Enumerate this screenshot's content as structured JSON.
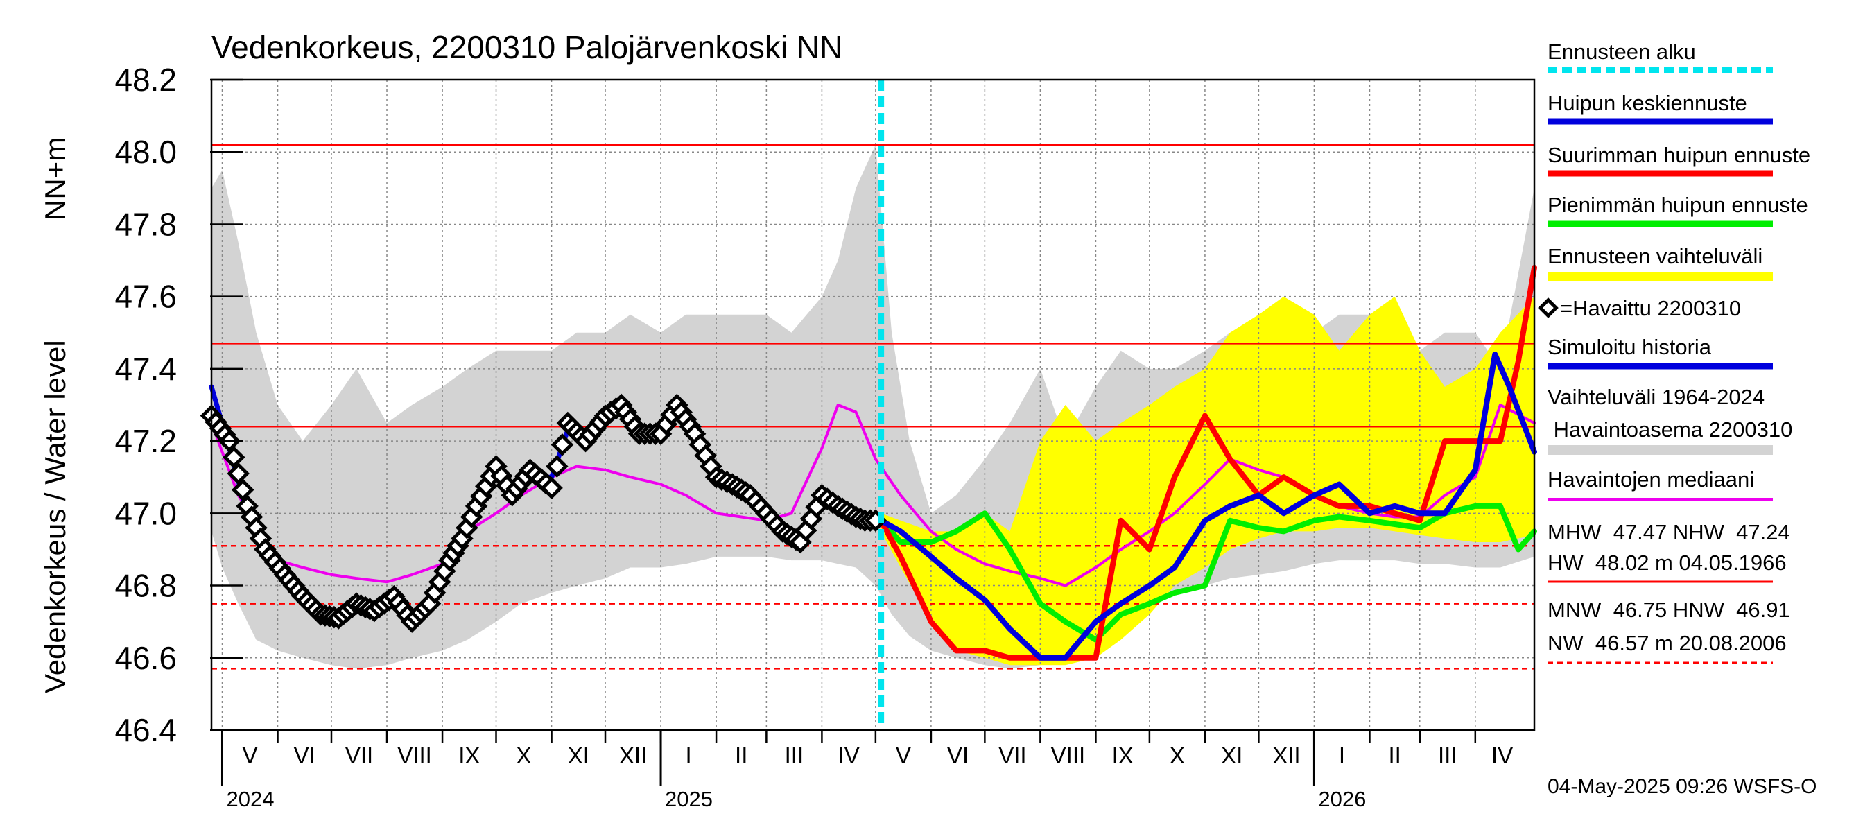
{
  "chart_data": {
    "type": "line",
    "title": "Vedenkorkeus, 2200310 Palojärvenkoski NN",
    "ylabel_main": "Vedenkorkeus / Water level",
    "ylabel_unit": "NN+m",
    "ylim": [
      46.4,
      48.2
    ],
    "yticks": [
      "46.4",
      "46.6",
      "46.8",
      "47.0",
      "47.2",
      "47.4",
      "47.6",
      "47.8",
      "48.0",
      "48.2"
    ],
    "xlim": [
      "2024-04-25",
      "2026-05-04"
    ],
    "grid": true,
    "months": [
      {
        "label": "V",
        "start": "2024-05-01",
        "end": "2024-06-01"
      },
      {
        "label": "VI",
        "start": "2024-06-01",
        "end": "2024-07-01"
      },
      {
        "label": "VII",
        "start": "2024-07-01",
        "end": "2024-08-01"
      },
      {
        "label": "VIII",
        "start": "2024-08-01",
        "end": "2024-09-01"
      },
      {
        "label": "IX",
        "start": "2024-09-01",
        "end": "2024-10-01"
      },
      {
        "label": "X",
        "start": "2024-10-01",
        "end": "2024-11-01"
      },
      {
        "label": "XI",
        "start": "2024-11-01",
        "end": "2024-12-01"
      },
      {
        "label": "XII",
        "start": "2024-12-01",
        "end": "2025-01-01"
      },
      {
        "label": "I",
        "start": "2025-01-01",
        "end": "2025-02-01"
      },
      {
        "label": "II",
        "start": "2025-02-01",
        "end": "2025-03-01"
      },
      {
        "label": "III",
        "start": "2025-03-01",
        "end": "2025-04-01"
      },
      {
        "label": "IV",
        "start": "2025-04-01",
        "end": "2025-05-01"
      },
      {
        "label": "V",
        "start": "2025-05-01",
        "end": "2025-06-01"
      },
      {
        "label": "VI",
        "start": "2025-06-01",
        "end": "2025-07-01"
      },
      {
        "label": "VII",
        "start": "2025-07-01",
        "end": "2025-08-01"
      },
      {
        "label": "VIII",
        "start": "2025-08-01",
        "end": "2025-09-01"
      },
      {
        "label": "IX",
        "start": "2025-09-01",
        "end": "2025-10-01"
      },
      {
        "label": "X",
        "start": "2025-10-01",
        "end": "2025-11-01"
      },
      {
        "label": "XI",
        "start": "2025-11-01",
        "end": "2025-12-01"
      },
      {
        "label": "XII",
        "start": "2025-12-01",
        "end": "2026-01-01"
      },
      {
        "label": "I",
        "start": "2026-01-01",
        "end": "2026-02-01"
      },
      {
        "label": "II",
        "start": "2026-02-01",
        "end": "2026-03-01"
      },
      {
        "label": "III",
        "start": "2026-03-01",
        "end": "2026-04-01"
      },
      {
        "label": "IV",
        "start": "2026-04-01",
        "end": "2026-05-01"
      }
    ],
    "years": [
      {
        "label": "2024",
        "date": "2024-05-01"
      },
      {
        "label": "2025",
        "date": "2025-01-01"
      },
      {
        "label": "2026",
        "date": "2026-01-01"
      }
    ],
    "forecast_start": "2025-05-04",
    "reference_lines": {
      "HW": 48.02,
      "MHW": 47.47,
      "NHW": 47.24,
      "HNW": 46.91,
      "MNW": 46.75,
      "NW": 46.57
    },
    "history_band": {
      "x": [
        "2024-04-25",
        "2024-05-01",
        "2024-05-10",
        "2024-05-20",
        "2024-06-01",
        "2024-06-15",
        "2024-07-01",
        "2024-07-15",
        "2024-08-01",
        "2024-08-15",
        "2024-09-01",
        "2024-09-15",
        "2024-10-01",
        "2024-10-15",
        "2024-11-01",
        "2024-11-15",
        "2024-12-01",
        "2024-12-15",
        "2025-01-01",
        "2025-01-15",
        "2025-02-01",
        "2025-02-15",
        "2025-03-01",
        "2025-03-15",
        "2025-04-01",
        "2025-04-10",
        "2025-04-20",
        "2025-05-01",
        "2025-05-10",
        "2025-05-20",
        "2025-06-01",
        "2025-06-15",
        "2025-07-01",
        "2025-07-15",
        "2025-08-01",
        "2025-08-15",
        "2025-09-01",
        "2025-09-15",
        "2025-10-01",
        "2025-10-15",
        "2025-11-01",
        "2025-11-15",
        "2025-12-01",
        "2025-12-15",
        "2026-01-01",
        "2026-01-15",
        "2026-02-01",
        "2026-02-15",
        "2026-03-01",
        "2026-03-15",
        "2026-04-01",
        "2026-04-15",
        "2026-05-04"
      ],
      "upper": [
        47.9,
        47.95,
        47.75,
        47.5,
        47.3,
        47.2,
        47.3,
        47.4,
        47.25,
        47.3,
        47.35,
        47.4,
        47.45,
        47.45,
        47.45,
        47.5,
        47.5,
        47.55,
        47.5,
        47.55,
        47.55,
        47.55,
        47.55,
        47.5,
        47.6,
        47.7,
        47.9,
        48.02,
        47.5,
        47.2,
        47.0,
        47.05,
        47.15,
        47.25,
        47.4,
        47.2,
        47.35,
        47.45,
        47.4,
        47.4,
        47.45,
        47.5,
        47.5,
        47.55,
        47.5,
        47.55,
        47.55,
        47.5,
        47.45,
        47.5,
        47.5,
        47.4,
        47.9
      ],
      "lower": [
        46.95,
        46.85,
        46.75,
        46.65,
        46.62,
        46.6,
        46.58,
        46.57,
        46.58,
        46.6,
        46.62,
        46.65,
        46.7,
        46.75,
        46.78,
        46.8,
        46.82,
        46.85,
        46.85,
        46.86,
        46.88,
        46.88,
        46.88,
        46.87,
        46.87,
        46.86,
        46.85,
        46.8,
        46.72,
        46.66,
        46.62,
        46.6,
        46.58,
        46.57,
        46.58,
        46.6,
        46.63,
        46.68,
        46.74,
        46.78,
        46.8,
        46.82,
        46.83,
        46.84,
        46.86,
        46.87,
        46.87,
        46.87,
        46.86,
        46.86,
        46.85,
        46.85,
        46.88
      ]
    },
    "forecast_band": {
      "x": [
        "2025-05-04",
        "2025-05-15",
        "2025-06-01",
        "2025-06-15",
        "2025-07-01",
        "2025-07-15",
        "2025-08-01",
        "2025-08-15",
        "2025-09-01",
        "2025-09-15",
        "2025-10-01",
        "2025-10-15",
        "2025-11-01",
        "2025-11-15",
        "2025-12-01",
        "2025-12-15",
        "2026-01-01",
        "2026-01-15",
        "2026-02-01",
        "2026-02-15",
        "2026-03-01",
        "2026-03-15",
        "2026-04-01",
        "2026-04-15",
        "2026-05-04"
      ],
      "upper": [
        47.0,
        46.98,
        46.95,
        46.95,
        47.0,
        46.95,
        47.2,
        47.3,
        47.2,
        47.25,
        47.3,
        47.35,
        47.4,
        47.5,
        47.55,
        47.6,
        47.55,
        47.45,
        47.55,
        47.6,
        47.45,
        47.35,
        47.4,
        47.5,
        47.6
      ],
      "lower": [
        46.95,
        46.85,
        46.7,
        46.62,
        46.6,
        46.58,
        46.58,
        46.58,
        46.6,
        46.65,
        46.72,
        46.8,
        46.85,
        46.9,
        46.93,
        46.95,
        46.95,
        46.96,
        46.96,
        46.95,
        46.94,
        46.93,
        46.92,
        46.92,
        46.94
      ]
    },
    "series": [
      {
        "name": "Havaittu 2200310",
        "x": [
          "2024-04-25",
          "2024-05-05",
          "2024-05-15",
          "2024-05-25",
          "2024-06-05",
          "2024-06-15",
          "2024-06-25",
          "2024-07-05",
          "2024-07-15",
          "2024-07-25",
          "2024-08-05",
          "2024-08-15",
          "2024-08-25",
          "2024-09-05",
          "2024-09-12",
          "2024-09-20",
          "2024-10-01",
          "2024-10-10",
          "2024-10-20",
          "2024-11-01",
          "2024-11-10",
          "2024-11-20",
          "2024-12-01",
          "2024-12-10",
          "2024-12-20",
          "2025-01-01",
          "2025-01-10",
          "2025-01-20",
          "2025-02-01",
          "2025-02-10",
          "2025-02-20",
          "2025-03-01",
          "2025-03-10",
          "2025-03-20",
          "2025-04-01",
          "2025-04-10",
          "2025-04-20",
          "2025-04-25",
          "2025-05-04"
        ],
        "y": [
          47.27,
          47.2,
          47.02,
          46.9,
          46.83,
          46.77,
          46.72,
          46.71,
          46.75,
          46.73,
          46.77,
          46.7,
          46.75,
          46.87,
          46.93,
          47.02,
          47.13,
          47.05,
          47.12,
          47.07,
          47.25,
          47.2,
          47.27,
          47.3,
          47.22,
          47.22,
          47.3,
          47.22,
          47.1,
          47.08,
          47.05,
          47.0,
          46.95,
          46.92,
          47.05,
          47.02,
          46.99,
          46.98,
          46.98
        ]
      },
      {
        "name": "Simuloitu historia",
        "x": [
          "2024-04-25",
          "2024-05-05",
          "2024-05-15",
          "2024-05-25",
          "2024-06-05",
          "2024-06-15",
          "2024-06-25",
          "2024-07-05",
          "2024-07-15",
          "2024-07-25",
          "2024-08-05",
          "2024-08-15",
          "2024-08-25",
          "2024-09-05",
          "2024-09-12",
          "2024-09-20",
          "2024-10-01",
          "2024-10-10",
          "2024-10-20",
          "2024-11-01",
          "2024-11-10",
          "2024-11-20",
          "2024-12-01",
          "2024-12-10",
          "2024-12-20",
          "2025-01-01",
          "2025-01-10",
          "2025-01-20",
          "2025-02-01",
          "2025-02-10",
          "2025-02-20",
          "2025-03-01",
          "2025-03-10",
          "2025-03-20",
          "2025-04-01",
          "2025-04-10",
          "2025-04-20",
          "2025-05-04"
        ],
        "y": [
          47.35,
          47.18,
          47.0,
          46.88,
          46.82,
          46.76,
          46.72,
          46.7,
          46.74,
          46.72,
          46.75,
          46.68,
          46.74,
          46.9,
          46.93,
          47.05,
          47.1,
          47.05,
          47.1,
          47.1,
          47.23,
          47.2,
          47.25,
          47.28,
          47.22,
          47.22,
          47.28,
          47.22,
          47.1,
          47.08,
          47.04,
          47.0,
          46.95,
          46.9,
          47.04,
          47.02,
          46.99,
          46.98
        ]
      },
      {
        "name": "Havaintojen mediaani",
        "x": [
          "2024-04-25",
          "2024-05-10",
          "2024-06-01",
          "2024-06-15",
          "2024-07-01",
          "2024-07-15",
          "2024-08-01",
          "2024-08-15",
          "2024-09-01",
          "2024-09-15",
          "2024-10-01",
          "2024-10-15",
          "2024-11-01",
          "2024-11-15",
          "2024-12-01",
          "2024-12-15",
          "2025-01-01",
          "2025-01-15",
          "2025-02-01",
          "2025-02-15",
          "2025-03-01",
          "2025-03-15",
          "2025-04-01",
          "2025-04-10",
          "2025-04-20",
          "2025-05-01",
          "2025-05-15",
          "2025-06-01",
          "2025-06-15",
          "2025-07-01",
          "2025-07-15",
          "2025-08-01",
          "2025-08-15",
          "2025-09-01",
          "2025-09-15",
          "2025-10-01",
          "2025-10-15",
          "2025-11-01",
          "2025-11-15",
          "2025-12-01",
          "2025-12-15",
          "2026-01-01",
          "2026-01-15",
          "2026-02-01",
          "2026-02-15",
          "2026-03-01",
          "2026-03-15",
          "2026-04-01",
          "2026-04-15",
          "2026-05-04"
        ],
        "y": [
          47.25,
          47.05,
          46.87,
          46.85,
          46.83,
          46.82,
          46.81,
          46.83,
          46.86,
          46.95,
          47.0,
          47.05,
          47.1,
          47.13,
          47.12,
          47.1,
          47.08,
          47.05,
          47.0,
          46.99,
          46.98,
          47.0,
          47.18,
          47.3,
          47.28,
          47.15,
          47.05,
          46.95,
          46.9,
          46.86,
          46.84,
          46.82,
          46.8,
          46.85,
          46.9,
          46.95,
          47.0,
          47.08,
          47.15,
          47.12,
          47.1,
          47.05,
          47.02,
          47.0,
          46.99,
          46.99,
          47.05,
          47.1,
          47.3,
          47.25
        ]
      },
      {
        "name": "Huipun keskiennuste",
        "x": [
          "2025-05-04",
          "2025-05-15",
          "2025-06-01",
          "2025-06-15",
          "2025-07-01",
          "2025-07-15",
          "2025-08-01",
          "2025-08-15",
          "2025-09-01",
          "2025-09-15",
          "2025-10-01",
          "2025-10-15",
          "2025-11-01",
          "2025-11-15",
          "2025-12-01",
          "2025-12-15",
          "2026-01-01",
          "2026-01-15",
          "2026-02-01",
          "2026-02-15",
          "2026-03-01",
          "2026-03-15",
          "2026-04-01",
          "2026-04-12",
          "2026-04-20",
          "2026-05-04"
        ],
        "y": [
          46.98,
          46.95,
          46.88,
          46.82,
          46.76,
          46.68,
          46.6,
          46.6,
          46.7,
          46.75,
          46.8,
          46.85,
          46.98,
          47.02,
          47.05,
          47.0,
          47.05,
          47.08,
          47.0,
          47.02,
          47.0,
          47.0,
          47.12,
          47.44,
          47.35,
          47.17
        ]
      },
      {
        "name": "Suurimman huipun ennuste",
        "x": [
          "2025-05-04",
          "2025-05-15",
          "2025-06-01",
          "2025-06-15",
          "2025-07-01",
          "2025-07-15",
          "2025-08-01",
          "2025-08-15",
          "2025-09-01",
          "2025-09-15",
          "2025-10-01",
          "2025-10-15",
          "2025-11-01",
          "2025-11-15",
          "2025-12-01",
          "2025-12-15",
          "2026-01-01",
          "2026-01-15",
          "2026-02-01",
          "2026-02-15",
          "2026-03-01",
          "2026-03-15",
          "2026-04-01",
          "2026-04-15",
          "2026-04-25",
          "2026-05-04"
        ],
        "y": [
          46.98,
          46.88,
          46.7,
          46.62,
          46.62,
          46.6,
          46.6,
          46.6,
          46.6,
          46.98,
          46.9,
          47.1,
          47.27,
          47.15,
          47.05,
          47.1,
          47.05,
          47.02,
          47.02,
          47.0,
          46.98,
          47.2,
          47.2,
          47.2,
          47.42,
          47.68
        ]
      },
      {
        "name": "Pienimmän huipun ennuste",
        "x": [
          "2025-05-04",
          "2025-05-15",
          "2025-06-01",
          "2025-06-15",
          "2025-07-01",
          "2025-07-15",
          "2025-08-01",
          "2025-08-15",
          "2025-09-01",
          "2025-09-15",
          "2025-10-01",
          "2025-10-15",
          "2025-11-01",
          "2025-11-15",
          "2025-12-01",
          "2025-12-15",
          "2026-01-01",
          "2026-01-15",
          "2026-02-01",
          "2026-02-15",
          "2026-03-01",
          "2026-03-15",
          "2026-04-01",
          "2026-04-15",
          "2026-04-25",
          "2026-05-04"
        ],
        "y": [
          46.98,
          46.92,
          46.92,
          46.95,
          47.0,
          46.9,
          46.75,
          46.7,
          46.65,
          46.72,
          46.75,
          46.78,
          46.8,
          46.98,
          46.96,
          46.95,
          46.98,
          46.99,
          46.98,
          46.97,
          46.96,
          47.0,
          47.02,
          47.02,
          46.9,
          46.95
        ]
      }
    ]
  },
  "legend": {
    "forecast_start": "Ennusteen alku",
    "mean_peak": "Huipun keskiennuste",
    "max_peak": "Suurimman huipun ennuste",
    "min_peak": "Pienimmän huipun ennuste",
    "forecast_range": "Ennusteen vaihteluväli",
    "observed": "=Havaittu 2200310",
    "simulated": "Simuloitu historia",
    "history_range_1": "Vaihteluväli 1964-2024",
    "history_range_2": " Havaintoasema 2200310",
    "median": "Havaintojen mediaani",
    "stats_line1": "MHW  47.47 NHW  47.24",
    "stats_line2": "HW  48.02 m 04.05.1966",
    "stats_line3": "MNW  46.75 HNW  46.91",
    "stats_line4": "NW  46.57 m 20.08.2006"
  },
  "footer": {
    "timestamp": "04-May-2025 09:26 WSFS-O"
  },
  "colors": {
    "history_band": "#d3d3d3",
    "forecast_band": "#ffff00",
    "observed": "#000000",
    "simulated": "#0000dd",
    "median": "#ee00ee",
    "mean_peak": "#0000dd",
    "max_peak": "#ff0000",
    "min_peak": "#00ee00",
    "forecast_start": "#00e5ee",
    "ref_line": "#ff0000"
  }
}
